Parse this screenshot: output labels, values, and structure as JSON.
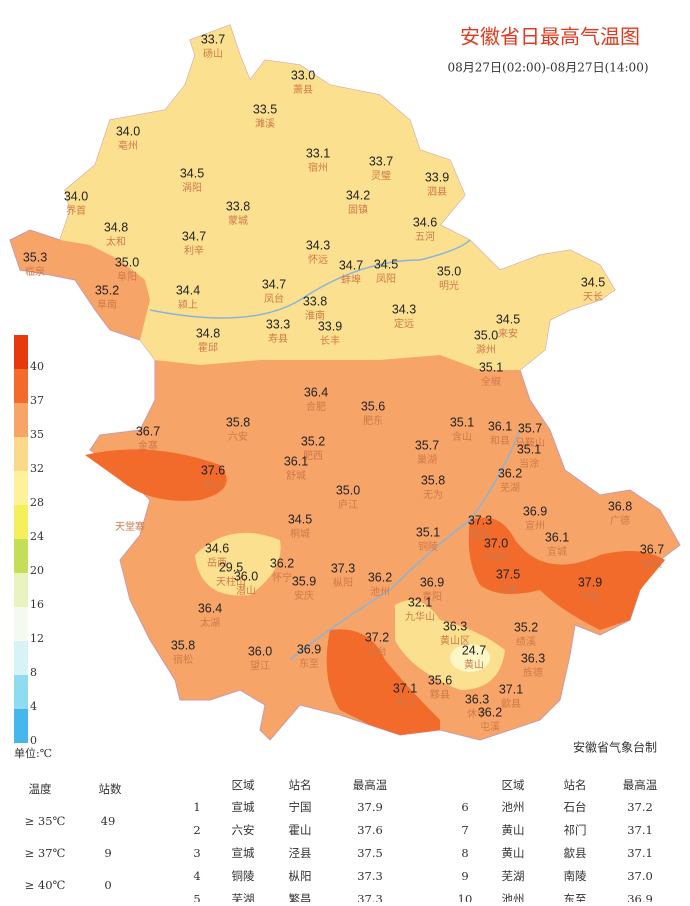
{
  "header": {
    "title": "安徽省日最高气温图",
    "subtitle": "08月27日(02:00)-08月27日(14:00)"
  },
  "stations": [
    {
      "value": "33.7",
      "name": "砀山"
    },
    {
      "value": "33.0",
      "name": "萧县"
    },
    {
      "value": "33.5",
      "name": "濉溪"
    },
    {
      "value": "34.0",
      "name": "亳州"
    },
    {
      "value": "34.5",
      "name": "涡阳"
    },
    {
      "value": "33.1",
      "name": "宿州"
    },
    {
      "value": "33.7",
      "name": "灵璧"
    },
    {
      "value": "33.9",
      "name": "泗县"
    },
    {
      "value": "34.0",
      "name": "界首"
    },
    {
      "value": "33.8",
      "name": "蒙城"
    },
    {
      "value": "34.2",
      "name": "固镇"
    },
    {
      "value": "34.8",
      "name": "太和"
    },
    {
      "value": "34.7",
      "name": "利辛"
    },
    {
      "value": "34.6",
      "name": "五河"
    },
    {
      "value": "34.3",
      "name": "怀远"
    },
    {
      "value": "35.3",
      "name": "临泉"
    },
    {
      "value": "35.0",
      "name": "阜阳"
    },
    {
      "value": "34.7",
      "name": "蚌埠"
    },
    {
      "value": "34.5",
      "name": "凤阳"
    },
    {
      "value": "35.0",
      "name": "明光"
    },
    {
      "value": "34.5",
      "name": "天长"
    },
    {
      "value": "35.2",
      "name": "阜南"
    },
    {
      "value": "34.4",
      "name": "颍上"
    },
    {
      "value": "34.7",
      "name": "凤台"
    },
    {
      "value": "33.8",
      "name": "淮南"
    },
    {
      "value": "34.3",
      "name": "定远"
    },
    {
      "value": "34.5",
      "name": "来安"
    },
    {
      "value": "33.3",
      "name": "寿县"
    },
    {
      "value": "33.9",
      "name": "长丰"
    },
    {
      "value": "34.8",
      "name": "霍邱"
    },
    {
      "value": "35.0",
      "name": "滁州"
    },
    {
      "value": "35.1",
      "name": "全椒"
    },
    {
      "value": "36.4",
      "name": "合肥"
    },
    {
      "value": "35.6",
      "name": "肥东"
    },
    {
      "value": "35.8",
      "name": "六安"
    },
    {
      "value": "35.1",
      "name": "含山"
    },
    {
      "value": "36.1",
      "name": "和县"
    },
    {
      "value": "35.7",
      "name": "马鞍山"
    },
    {
      "value": "36.7",
      "name": "金寨"
    },
    {
      "value": "35.2",
      "name": "肥西"
    },
    {
      "value": "35.7",
      "name": "巢湖"
    },
    {
      "value": "35.1",
      "name": "当涂"
    },
    {
      "value": "36.1",
      "name": "舒城"
    },
    {
      "value": "37.6",
      "name": "霍山"
    },
    {
      "value": "35.8",
      "name": "无为"
    },
    {
      "value": "36.2",
      "name": "芜湖"
    },
    {
      "value": "35.0",
      "name": "庐江"
    },
    {
      "value": "36.9",
      "name": "宣州"
    },
    {
      "value": "36.8",
      "name": "广德"
    },
    {
      "value": "37.3",
      "name": "繁昌"
    },
    {
      "value": "34.5",
      "name": "桐城"
    },
    {
      "value": "35.1",
      "name": "铜陵"
    },
    {
      "value": "36.1",
      "name": "宣城"
    },
    {
      "value": "37.0",
      "name": "南陵"
    },
    {
      "value": "36.7",
      "name": "郎溪"
    },
    {
      "value": "34.6",
      "name": "岳西"
    },
    {
      "value": "29.5",
      "name": "天柱山"
    },
    {
      "value": "36.0",
      "name": "潜山"
    },
    {
      "value": "36.2",
      "name": "怀宁"
    },
    {
      "value": "37.3",
      "name": "枞阳"
    },
    {
      "value": "36.2",
      "name": "池州"
    },
    {
      "value": "37.5",
      "name": "泾县"
    },
    {
      "value": "37.9",
      "name": "宁国"
    },
    {
      "value": "35.9",
      "name": "安庆"
    },
    {
      "value": "36.9",
      "name": "青阳"
    },
    {
      "value": "32.1",
      "name": "九华山"
    },
    {
      "value": "36.4",
      "name": "太湖"
    },
    {
      "value": "36.3",
      "name": "黄山区"
    },
    {
      "value": "35.2",
      "name": "绩溪"
    },
    {
      "value": "35.8",
      "name": "宿松"
    },
    {
      "value": "36.0",
      "name": "望江"
    },
    {
      "value": "36.9",
      "name": "东至"
    },
    {
      "value": "37.2",
      "name": "石台"
    },
    {
      "value": "24.7",
      "name": "黄山"
    },
    {
      "value": "36.3",
      "name": "旌德"
    },
    {
      "value": "35.6",
      "name": "黟县"
    },
    {
      "value": "37.1",
      "name": "祁门"
    },
    {
      "value": "36.3",
      "name": "休宁"
    },
    {
      "value": "37.1",
      "name": "歙县"
    },
    {
      "value": "36.2",
      "name": "屯溪"
    }
  ],
  "place": "天堂寨",
  "legend": {
    "unit": "单位:℃",
    "ticks": [
      {
        "label": "40",
        "color": "#e8380d"
      },
      {
        "label": "37",
        "color": "#f26b2a"
      },
      {
        "label": "35",
        "color": "#f7a468"
      },
      {
        "label": "32",
        "color": "#fbd98a"
      },
      {
        "label": "28",
        "color": "#fdf29a"
      },
      {
        "label": "24",
        "color": "#f4ef5a"
      },
      {
        "label": "20",
        "color": "#c4de58"
      },
      {
        "label": "16",
        "color": "#e9f3c0"
      },
      {
        "label": "12",
        "color": "#f4faf0"
      },
      {
        "label": "8",
        "color": "#d8f3f6"
      },
      {
        "label": "4",
        "color": "#8fdbf2"
      },
      {
        "label": "0",
        "color": "#45b7ec"
      }
    ]
  },
  "stats": {
    "headers": [
      "温度",
      "站数"
    ],
    "rows": [
      [
        "≥ 35℃",
        "49"
      ],
      [
        "≥ 37℃",
        "9"
      ],
      [
        "≥ 40℃",
        "0"
      ]
    ]
  },
  "ranking": {
    "headers": [
      "区域",
      "站名",
      "最高温"
    ],
    "rows": [
      [
        "1",
        "宣城",
        "宁国",
        "37.9"
      ],
      [
        "2",
        "六安",
        "霍山",
        "37.6"
      ],
      [
        "3",
        "宣城",
        "泾县",
        "37.5"
      ],
      [
        "4",
        "铜陵",
        "枞阳",
        "37.3"
      ],
      [
        "5",
        "芜湖",
        "繁昌",
        "37.3"
      ],
      [
        "6",
        "池州",
        "石台",
        "37.2"
      ],
      [
        "7",
        "黄山",
        "祁门",
        "37.1"
      ],
      [
        "8",
        "黄山",
        "歙县",
        "37.1"
      ],
      [
        "9",
        "芜湖",
        "南陵",
        "37.0"
      ],
      [
        "10",
        "池州",
        "东至",
        "36.9"
      ]
    ]
  },
  "source": "安徽省气象台制"
}
